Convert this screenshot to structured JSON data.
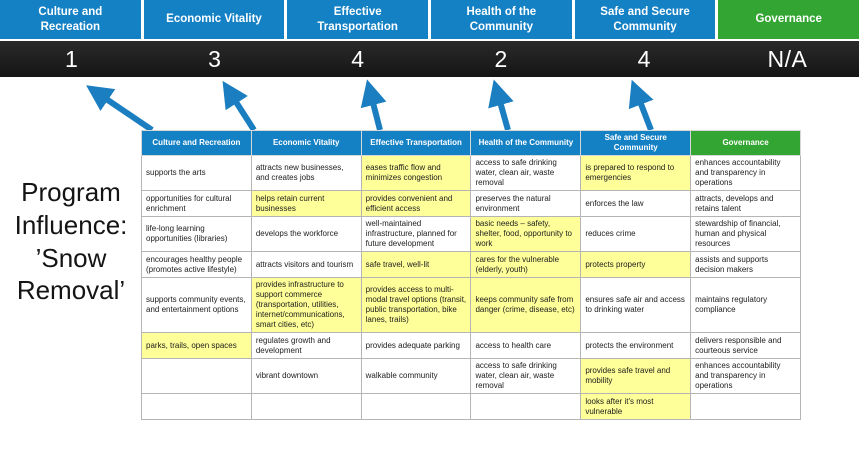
{
  "page_title": "Program Influence: ’Snow Removal’",
  "colors": {
    "blue": "#1581c5",
    "green": "#33a532",
    "score_bar": "#151515",
    "score_bar_top": "#2a2a2a",
    "arrow": "#1a7ec0",
    "highlight": "#ffff99"
  },
  "score_panel": {
    "columns": [
      {
        "label": "Culture and Recreation",
        "score": "1",
        "theme": "blue"
      },
      {
        "label": "Economic Vitality",
        "score": "3",
        "theme": "blue"
      },
      {
        "label": "Effective Transportation",
        "score": "4",
        "theme": "blue"
      },
      {
        "label": "Health of the Community",
        "score": "2",
        "theme": "blue"
      },
      {
        "label": "Safe and Secure Community",
        "score": "4",
        "theme": "blue"
      },
      {
        "label": "Governance",
        "score": "N/A",
        "theme": "green"
      }
    ]
  },
  "matrix": {
    "headers": [
      {
        "label": "Culture and Recreation",
        "theme": "blue"
      },
      {
        "label": "Economic Vitality",
        "theme": "blue"
      },
      {
        "label": "Effective Transportation",
        "theme": "blue"
      },
      {
        "label": "Health of the Community",
        "theme": "blue"
      },
      {
        "label": "Safe and Secure Community",
        "theme": "blue"
      },
      {
        "label": "Governance",
        "theme": "green"
      }
    ],
    "rows": [
      [
        {
          "text": "supports the arts",
          "highlight": false
        },
        {
          "text": "attracts new businesses, and creates jobs",
          "highlight": false
        },
        {
          "text": "eases traffic flow and minimizes congestion",
          "highlight": true
        },
        {
          "text": "access to safe drinking water, clean air, waste removal",
          "highlight": false
        },
        {
          "text": "is prepared to respond to emergencies",
          "highlight": true
        },
        {
          "text": "enhances accountability and transparency in operations",
          "highlight": false
        }
      ],
      [
        {
          "text": "opportunities for cultural enrichment",
          "highlight": false
        },
        {
          "text": "helps retain current businesses",
          "highlight": true
        },
        {
          "text": "provides convenient and efficient access",
          "highlight": true
        },
        {
          "text": "preserves the natural environment",
          "highlight": false
        },
        {
          "text": "enforces the law",
          "highlight": false
        },
        {
          "text": "attracts, develops and retains talent",
          "highlight": false
        }
      ],
      [
        {
          "text": "life-long learning opportunities (libraries)",
          "highlight": false
        },
        {
          "text": "develops the workforce",
          "highlight": false
        },
        {
          "text": "well-maintained infrastructure, planned for future development",
          "highlight": false
        },
        {
          "text": "basic needs – safety, shelter, food, opportunity to work",
          "highlight": true
        },
        {
          "text": "reduces crime",
          "highlight": false
        },
        {
          "text": "stewardship of financial, human and physical resources",
          "highlight": false
        }
      ],
      [
        {
          "text": "encourages healthy people (promotes active lifestyle)",
          "highlight": false
        },
        {
          "text": "attracts visitors and tourism",
          "highlight": false
        },
        {
          "text": "safe travel, well-lit",
          "highlight": true
        },
        {
          "text": "cares for the vulnerable (elderly, youth)",
          "highlight": true
        },
        {
          "text": "protects property",
          "highlight": true
        },
        {
          "text": "assists and supports decision makers",
          "highlight": false
        }
      ],
      [
        {
          "text": "supports community events, and entertainment options",
          "highlight": false
        },
        {
          "text": "provides infrastructure to support commerce (transportation, utilities, internet/communications, smart cities, etc)",
          "highlight": true
        },
        {
          "text": "provides access to multi-modal travel options (transit, public transportation, bike lanes, trails)",
          "highlight": true
        },
        {
          "text": "keeps community safe from danger (crime, disease, etc)",
          "highlight": true
        },
        {
          "text": "ensures safe air and access to drinking water",
          "highlight": false
        },
        {
          "text": "maintains regulatory compliance",
          "highlight": false
        }
      ],
      [
        {
          "text": "parks, trails, open spaces",
          "highlight": true
        },
        {
          "text": "regulates growth and development",
          "highlight": false
        },
        {
          "text": "provides adequate parking",
          "highlight": false
        },
        {
          "text": "access to health care",
          "highlight": false
        },
        {
          "text": "protects the environment",
          "highlight": false
        },
        {
          "text": "delivers responsible and courteous service",
          "highlight": false
        }
      ],
      [
        {
          "text": "",
          "highlight": false
        },
        {
          "text": "vibrant downtown",
          "highlight": false
        },
        {
          "text": "walkable community",
          "highlight": false
        },
        {
          "text": "access to safe drinking water, clean air, waste removal",
          "highlight": false
        },
        {
          "text": "provides safe travel and mobility",
          "highlight": true
        },
        {
          "text": "enhances accountability and transparency in operations",
          "highlight": false
        }
      ],
      [
        {
          "text": "",
          "highlight": false
        },
        {
          "text": "",
          "highlight": false
        },
        {
          "text": "",
          "highlight": false
        },
        {
          "text": "",
          "highlight": false
        },
        {
          "text": "looks after it's most vulnerable",
          "highlight": true
        },
        {
          "text": "",
          "highlight": false
        }
      ]
    ]
  }
}
